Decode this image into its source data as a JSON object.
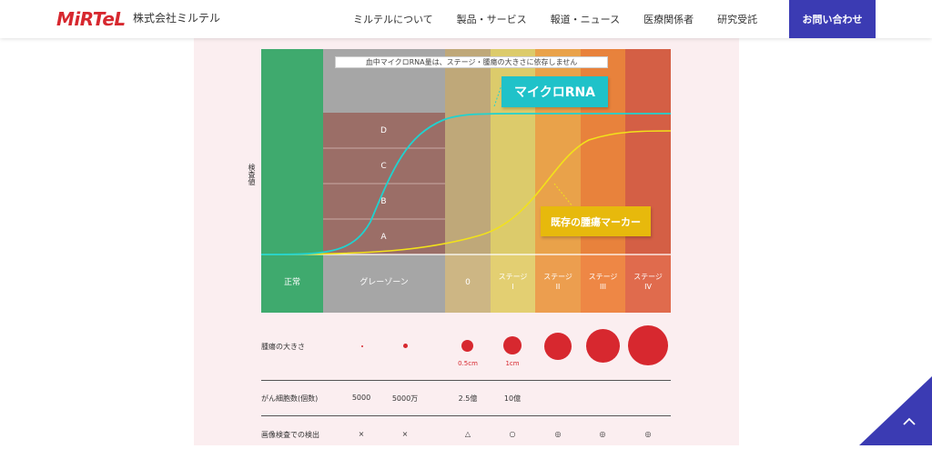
{
  "header": {
    "logo_text": "MiRTeL",
    "company_name": "株式会社ミルテル",
    "nav": [
      {
        "label": "ミルテルについて"
      },
      {
        "label": "製品・サービス"
      },
      {
        "label": "報道・ニュース"
      },
      {
        "label": "医療関係者"
      },
      {
        "label": "研究受託"
      }
    ],
    "contact_label": "お問い合わせ"
  },
  "chart": {
    "note": "血中マイクロRNA量は、ステージ・腫瘍の大きさに依存しません",
    "y_label": "検査値",
    "series_blue": "マイクロRNA",
    "series_yellow": "既存の腫瘍マーカー",
    "subgrades": [
      "D",
      "C",
      "B",
      "A"
    ],
    "stages": [
      {
        "label": "正常",
        "color": "#3faa6e"
      },
      {
        "label": "グレーゾーン",
        "color": "#a6a6a6"
      },
      {
        "label": "0",
        "color": "#bfa879"
      },
      {
        "label": "ステージ\nI",
        "color": "#dccb6b"
      },
      {
        "label": "ステージ\nII",
        "color": "#e9a24a"
      },
      {
        "label": "ステージ\nIII",
        "color": "#e8823c"
      },
      {
        "label": "ステージ\nIV",
        "color": "#d45f45"
      }
    ],
    "stage_bottom_colors": [
      "#3faa6e",
      "#a6a6a6",
      "#cdb684",
      "#e3cf72",
      "#ec9e4f",
      "#ee8745",
      "#e06b4d"
    ],
    "subgrade_color": "#9b6e67"
  },
  "table": {
    "tumor_size_label": "腫瘍の大きさ",
    "tumor_dot_annotations": [
      "0.5cm",
      "1cm"
    ],
    "cell_count_label": "がん細胞数(個数)",
    "cell_counts": [
      "5000",
      "5000万",
      "2.5億",
      "10億"
    ],
    "imaging_label": "画像検査での検出",
    "imaging": [
      "×",
      "×",
      "△",
      "○",
      "◎",
      "◎",
      "◎"
    ]
  },
  "colors": {
    "accent": "#3b3bb3",
    "brand_red": "#d7282f",
    "mirna_line": "#1fd3d0",
    "marker_line": "#f2e21a"
  },
  "icons": {
    "scroll_top": "chevron-up-icon"
  }
}
